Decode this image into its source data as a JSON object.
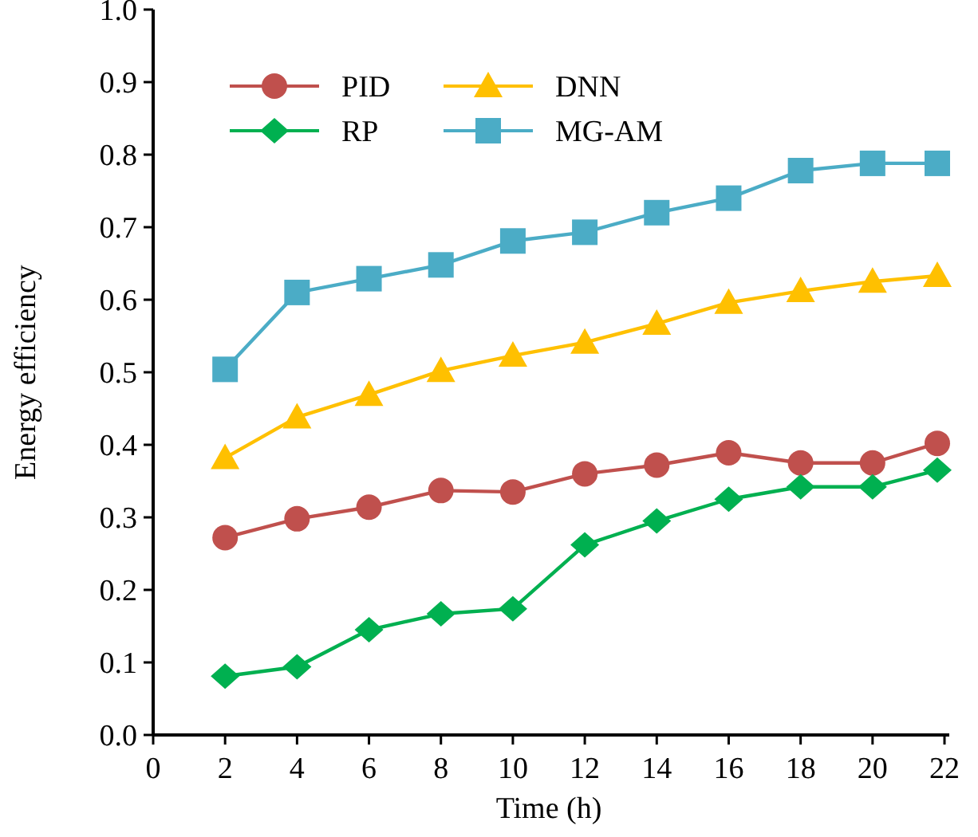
{
  "chart_data": {
    "type": "line",
    "xlabel": "Time (h)",
    "ylabel": "Energy efficiency",
    "xlim": [
      0,
      22
    ],
    "xticks": [
      0,
      2,
      4,
      6,
      8,
      10,
      12,
      14,
      16,
      18,
      20,
      22
    ],
    "ylim": [
      0,
      1
    ],
    "yticks": [
      {
        "value": 0,
        "label": "0.0"
      },
      {
        "value": 0.1,
        "label": "0.1"
      },
      {
        "value": 0.2,
        "label": "0.2"
      },
      {
        "value": 0.3,
        "label": "0.3"
      },
      {
        "value": 0.4,
        "label": "0.4"
      },
      {
        "value": 0.5,
        "label": "0.5"
      },
      {
        "value": 0.6,
        "label": "0.6"
      },
      {
        "value": 0.7,
        "label": "0.7"
      },
      {
        "value": 0.8,
        "label": "0.8"
      },
      {
        "value": 0.9,
        "label": "0.9"
      },
      {
        "value": 1,
        "label": "1.0"
      }
    ],
    "x": [
      2,
      4,
      6,
      8,
      10,
      12,
      14,
      16,
      18,
      20,
      21.8
    ],
    "grid": false,
    "legend": "top left",
    "line_style": "solid",
    "series": [
      {
        "name": "PID",
        "color": "#c0504d",
        "marker": "circle",
        "values": [
          0.272,
          0.298,
          0.314,
          0.337,
          0.335,
          0.36,
          0.372,
          0.389,
          0.375,
          0.375,
          0.402
        ]
      },
      {
        "name": "DNN",
        "color": "#ffc000",
        "marker": "triangle",
        "values": [
          0.382,
          0.438,
          0.469,
          0.502,
          0.523,
          0.541,
          0.567,
          0.596,
          0.612,
          0.625,
          0.633
        ]
      },
      {
        "name": "RP",
        "color": "#00b050",
        "marker": "diamond",
        "values": [
          0.081,
          0.094,
          0.145,
          0.167,
          0.174,
          0.262,
          0.295,
          0.325,
          0.342,
          0.342,
          0.365
        ]
      },
      {
        "name": "MG-AM",
        "color": "#4bacc6",
        "marker": "square",
        "values": [
          0.504,
          0.61,
          0.629,
          0.648,
          0.681,
          0.693,
          0.72,
          0.74,
          0.778,
          0.788,
          0.788
        ]
      }
    ]
  }
}
